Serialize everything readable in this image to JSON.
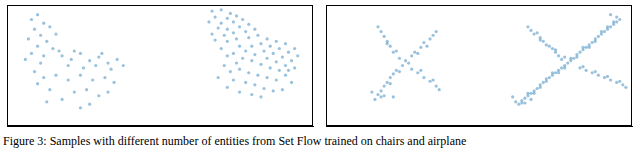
{
  "caption": "Figure 3: Samples with different number of entities from Set Flow trained on chairs and airplane",
  "chart_data": [
    {
      "type": "scatter",
      "xlim": [
        0,
        100
      ],
      "ylim": [
        0,
        100
      ],
      "grid": false,
      "tick_labels": false,
      "marker": "circle",
      "series": [
        {
          "color": "#1f77b4",
          "values": [
            [
              8,
              88
            ],
            [
              10,
              92
            ],
            [
              12,
              85
            ],
            [
              9,
              80
            ],
            [
              14,
              82
            ],
            [
              11,
              75
            ],
            [
              7,
              72
            ],
            [
              13,
              70
            ],
            [
              16,
              76
            ],
            [
              10,
              66
            ],
            [
              15,
              64
            ],
            [
              8,
              60
            ],
            [
              12,
              58
            ],
            [
              17,
              62
            ],
            [
              6,
              55
            ],
            [
              11,
              52
            ],
            [
              18,
              58
            ],
            [
              21,
              55
            ],
            [
              24,
              60
            ],
            [
              27,
              54
            ],
            [
              30,
              57
            ],
            [
              33,
              52
            ],
            [
              36,
              55
            ],
            [
              38,
              50
            ],
            [
              20,
              50
            ],
            [
              25,
              48
            ],
            [
              29,
              50
            ],
            [
              34,
              47
            ],
            [
              22,
              62
            ],
            [
              31,
              60
            ],
            [
              9,
              45
            ],
            [
              12,
              40
            ],
            [
              10,
              35
            ],
            [
              14,
              30
            ],
            [
              16,
              42
            ],
            [
              20,
              38
            ],
            [
              24,
              42
            ],
            [
              28,
              38
            ],
            [
              32,
              40
            ],
            [
              35,
              36
            ],
            [
              26,
              30
            ],
            [
              22,
              28
            ],
            [
              30,
              25
            ],
            [
              18,
              22
            ],
            [
              27,
              18
            ],
            [
              13,
              20
            ],
            [
              33,
              28
            ],
            [
              24,
              15
            ]
          ]
        },
        {
          "color": "#1f77b4",
          "values": [
            [
              67,
              95
            ],
            [
              70,
              96
            ],
            [
              73,
              93
            ],
            [
              68,
              90
            ],
            [
              72,
              89
            ],
            [
              75,
              91
            ],
            [
              66,
              86
            ],
            [
              70,
              85
            ],
            [
              74,
              86
            ],
            [
              77,
              88
            ],
            [
              69,
              81
            ],
            [
              72,
              80
            ],
            [
              76,
              82
            ],
            [
              79,
              84
            ],
            [
              67,
              76
            ],
            [
              71,
              75
            ],
            [
              74,
              77
            ],
            [
              78,
              78
            ],
            [
              81,
              80
            ],
            [
              68,
              71
            ],
            [
              72,
              70
            ],
            [
              75,
              72
            ],
            [
              79,
              73
            ],
            [
              82,
              75
            ],
            [
              85,
              72
            ],
            [
              88,
              70
            ],
            [
              91,
              68
            ],
            [
              94,
              64
            ],
            [
              83,
              68
            ],
            [
              86,
              66
            ],
            [
              89,
              64
            ],
            [
              92,
              61
            ],
            [
              95,
              58
            ],
            [
              80,
              66
            ],
            [
              84,
              62
            ],
            [
              87,
              60
            ],
            [
              90,
              57
            ],
            [
              93,
              54
            ],
            [
              78,
              62
            ],
            [
              81,
              59
            ],
            [
              85,
              56
            ],
            [
              88,
              53
            ],
            [
              91,
              50
            ],
            [
              94,
              48
            ],
            [
              76,
              66
            ],
            [
              74,
              60
            ],
            [
              77,
              56
            ],
            [
              80,
              54
            ],
            [
              83,
              51
            ],
            [
              86,
              48
            ],
            [
              89,
              46
            ],
            [
              70,
              64
            ],
            [
              72,
              58
            ],
            [
              75,
              52
            ],
            [
              71,
              50
            ],
            [
              73,
              45
            ],
            [
              76,
              47
            ],
            [
              79,
              44
            ],
            [
              82,
              42
            ],
            [
              85,
              40
            ],
            [
              88,
              38
            ],
            [
              91,
              42
            ],
            [
              93,
              36
            ],
            [
              74,
              38
            ],
            [
              78,
              36
            ],
            [
              81,
              34
            ],
            [
              84,
              31
            ],
            [
              87,
              29
            ],
            [
              72,
              32
            ],
            [
              76,
              28
            ],
            [
              80,
              26
            ],
            [
              90,
              30
            ],
            [
              83,
              24
            ],
            [
              69,
              40
            ],
            [
              92,
              46
            ]
          ]
        }
      ]
    },
    {
      "type": "scatter",
      "xlim": [
        0,
        100
      ],
      "ylim": [
        0,
        100
      ],
      "grid": false,
      "tick_labels": false,
      "marker": "circle",
      "series": [
        {
          "color": "#1f77b4",
          "values": [
            [
              16,
              22
            ],
            [
              17,
              26
            ],
            [
              18,
              29
            ],
            [
              19,
              33
            ],
            [
              20,
              36
            ],
            [
              21,
              40
            ],
            [
              22,
              43
            ],
            [
              23,
              46
            ],
            [
              25,
              50
            ],
            [
              26,
              54
            ],
            [
              28,
              58
            ],
            [
              29,
              61
            ],
            [
              31,
              65
            ],
            [
              32,
              69
            ],
            [
              34,
              72
            ],
            [
              35,
              75
            ],
            [
              36,
              78
            ],
            [
              18,
              24
            ],
            [
              21,
              35
            ],
            [
              24,
              45
            ],
            [
              27,
              52
            ],
            [
              30,
              60
            ],
            [
              33,
              66
            ],
            [
              24,
              56
            ],
            [
              22,
              61
            ],
            [
              21,
              66
            ],
            [
              20,
              70
            ],
            [
              19,
              74
            ],
            [
              18,
              78
            ],
            [
              17,
              82
            ],
            [
              23,
              62
            ],
            [
              20,
              68
            ],
            [
              28,
              47
            ],
            [
              30,
              44
            ],
            [
              32,
              40
            ],
            [
              34,
              37
            ],
            [
              36,
              33
            ],
            [
              37,
              30
            ],
            [
              31,
              46
            ],
            [
              35,
              38
            ],
            [
              15,
              28
            ],
            [
              19,
              25
            ],
            [
              22,
              24
            ]
          ]
        },
        {
          "color": "#1f77b4",
          "values": [
            [
              63,
              18
            ],
            [
              64,
              21
            ],
            [
              65,
              23
            ],
            [
              66,
              25
            ],
            [
              67,
              27
            ],
            [
              68,
              29
            ],
            [
              69,
              31
            ],
            [
              70,
              34
            ],
            [
              71,
              36
            ],
            [
              72,
              37
            ],
            [
              73,
              40
            ],
            [
              74,
              42
            ],
            [
              75,
              44
            ],
            [
              76,
              46
            ],
            [
              77,
              48
            ],
            [
              78,
              50
            ],
            [
              79,
              52
            ],
            [
              80,
              54
            ],
            [
              81,
              56
            ],
            [
              82,
              59
            ],
            [
              83,
              61
            ],
            [
              84,
              63
            ],
            [
              85,
              65
            ],
            [
              86,
              67
            ],
            [
              87,
              69
            ],
            [
              88,
              72
            ],
            [
              89,
              74
            ],
            [
              90,
              76
            ],
            [
              91,
              78
            ],
            [
              92,
              80
            ],
            [
              93,
              82
            ],
            [
              94,
              84
            ],
            [
              95,
              86
            ],
            [
              96,
              88
            ],
            [
              64,
              19
            ],
            [
              66,
              27
            ],
            [
              68,
              27
            ],
            [
              70,
              32
            ],
            [
              72,
              39
            ],
            [
              74,
              44
            ],
            [
              76,
              44
            ],
            [
              78,
              48
            ],
            [
              80,
              56
            ],
            [
              82,
              57
            ],
            [
              84,
              65
            ],
            [
              86,
              65
            ],
            [
              88,
              70
            ],
            [
              90,
              78
            ],
            [
              92,
              82
            ],
            [
              94,
              86
            ],
            [
              95,
              90
            ],
            [
              93,
              92
            ],
            [
              77,
              55
            ],
            [
              76,
              58
            ],
            [
              75,
              61
            ],
            [
              74,
              64
            ],
            [
              72,
              67
            ],
            [
              71,
              70
            ],
            [
              70,
              73
            ],
            [
              68,
              76
            ],
            [
              67,
              79
            ],
            [
              66,
              82
            ],
            [
              78,
              57
            ],
            [
              75,
              63
            ],
            [
              73,
              66
            ],
            [
              70,
              71
            ],
            [
              69,
              77
            ],
            [
              83,
              48
            ],
            [
              85,
              46
            ],
            [
              87,
              44
            ],
            [
              89,
              42
            ],
            [
              91,
              40
            ],
            [
              93,
              38
            ],
            [
              95,
              36
            ],
            [
              97,
              34
            ],
            [
              98,
              32
            ],
            [
              84,
              49
            ],
            [
              88,
              45
            ],
            [
              92,
              41
            ],
            [
              96,
              37
            ],
            [
              61,
              24
            ],
            [
              62,
              20
            ],
            [
              65,
              19
            ],
            [
              67,
              22
            ]
          ]
        }
      ]
    }
  ]
}
